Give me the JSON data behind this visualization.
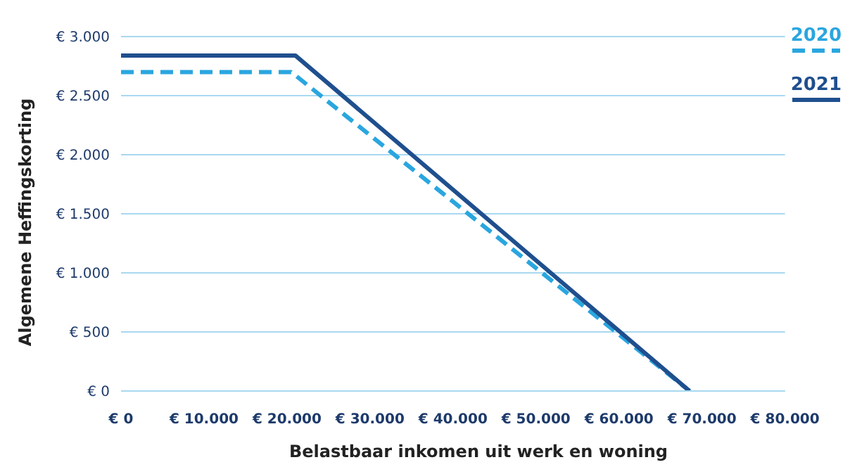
{
  "chart_data": {
    "type": "line",
    "xlabel": "Belastbaar inkomen uit werk en woning",
    "ylabel": "Algemene Heffingskorting",
    "series": [
      {
        "name": "2020",
        "color": "#2aa6df",
        "line_style": "dashed",
        "x": [
          0,
          20500,
          68500
        ],
        "values": [
          2700,
          2700,
          0
        ]
      },
      {
        "name": "2021",
        "color": "#1f4f8e",
        "line_style": "solid",
        "x": [
          0,
          21000,
          68500
        ],
        "values": [
          2840,
          2840,
          0
        ]
      }
    ],
    "xlim": [
      0,
      80000
    ],
    "xticks": [
      {
        "value": 0,
        "label": "€ 0"
      },
      {
        "value": 10000,
        "label": "€ 10.000"
      },
      {
        "value": 20000,
        "label": "€ 20.000"
      },
      {
        "value": 30000,
        "label": "€ 30.000"
      },
      {
        "value": 40000,
        "label": "€ 40.000"
      },
      {
        "value": 50000,
        "label": "€ 50.000"
      },
      {
        "value": 60000,
        "label": "€ 60.000"
      },
      {
        "value": 70000,
        "label": "€ 70.000"
      },
      {
        "value": 80000,
        "label": "€ 80.000"
      }
    ],
    "ylim": [
      0,
      3000
    ],
    "yticks": [
      {
        "value": 0,
        "label": "€ 0"
      },
      {
        "value": 500,
        "label": "€ 500"
      },
      {
        "value": 1000,
        "label": "€ 1.000"
      },
      {
        "value": 1500,
        "label": "€ 1.500"
      },
      {
        "value": 2000,
        "label": "€ 2.000"
      },
      {
        "value": 2500,
        "label": "€ 2.500"
      },
      {
        "value": 3000,
        "label": "€ 3.000"
      }
    ],
    "grid": "y",
    "legend": "top right",
    "marker": "none"
  }
}
